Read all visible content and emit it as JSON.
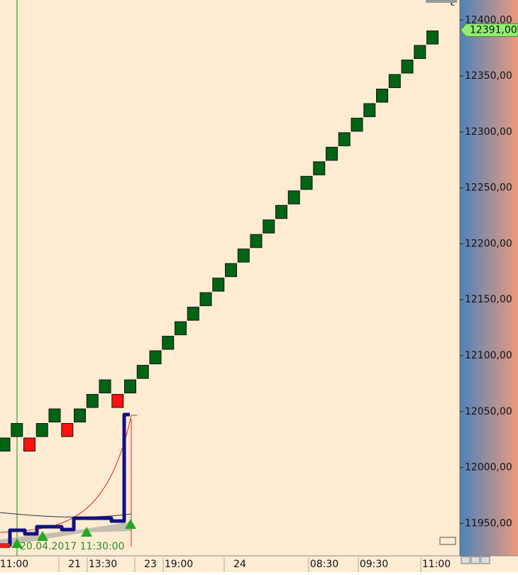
{
  "chart_data": {
    "type": "renko",
    "currency": "€",
    "annotation": "20.04.2017 11:30:00",
    "up_color": "#006414",
    "down_color": "#ff1010",
    "opens": [
      12014,
      12027,
      12027,
      12027,
      12040,
      12040,
      12040,
      12053,
      12066,
      12066,
      12066,
      12079,
      12092,
      12105,
      12118,
      12131,
      12144,
      12157,
      12170,
      12183,
      12196,
      12209,
      12222,
      12235,
      12248,
      12261,
      12274,
      12287,
      12300,
      12313,
      12326,
      12339,
      12352,
      12365,
      12378
    ],
    "values": [
      12027,
      12040,
      12014,
      12040,
      12053,
      12027,
      12053,
      12066,
      12079,
      12053,
      12079,
      12092,
      12105,
      12118,
      12131,
      12144,
      12157,
      12170,
      12183,
      12196,
      12209,
      12222,
      12235,
      12248,
      12261,
      12274,
      12287,
      12300,
      12313,
      12326,
      12339,
      12352,
      12365,
      12378,
      12391
    ],
    "x_labels": [
      "11:00",
      "21",
      "13:30",
      "23",
      "19:00",
      "24",
      "08:30",
      "09:30",
      "11:00"
    ],
    "ylim": [
      11921,
      12418
    ],
    "yticks": [
      {
        "value": 11950,
        "label": "11950,00"
      },
      {
        "value": 12000,
        "label": "12000,00"
      },
      {
        "value": 12050,
        "label": "12050,00"
      },
      {
        "value": 12100,
        "label": "12100,00"
      },
      {
        "value": 12150,
        "label": "12150,00"
      },
      {
        "value": 12200,
        "label": "12200,00"
      },
      {
        "value": 12250,
        "label": "12250,00"
      },
      {
        "value": 12300,
        "label": "12300,00"
      },
      {
        "value": 12350,
        "label": "12350,00"
      },
      {
        "value": 12400,
        "label": "12400,00"
      }
    ],
    "last_price": {
      "value": 12391,
      "label": "12391,00"
    }
  }
}
